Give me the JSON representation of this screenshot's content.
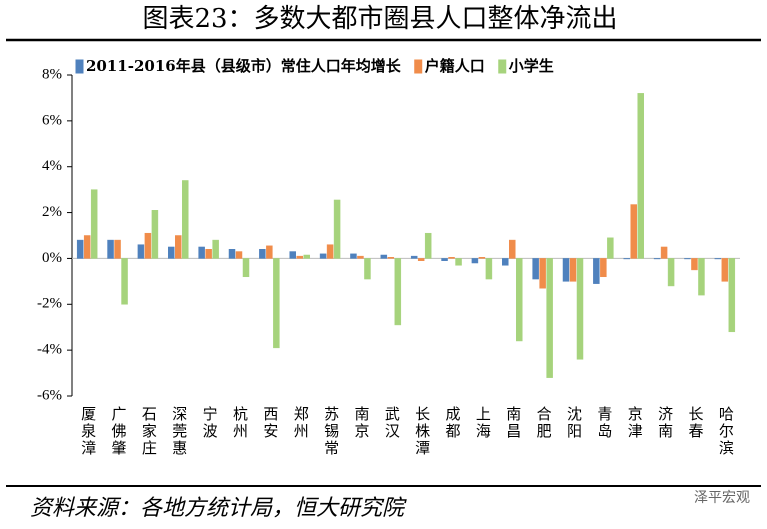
{
  "chart_data": {
    "type": "bar",
    "title": "图表23：多数大都市圈县人口整体净流出",
    "source": "资料来源：各地方统计局，恒大研究院",
    "watermark": "泽平宏观",
    "categories": [
      "厦泉漳",
      "广佛肇",
      "石家庄",
      "深莞惠",
      "宁波",
      "杭州",
      "西安",
      "郑州",
      "苏锡常",
      "南京",
      "武汉",
      "长株潭",
      "成都",
      "上海",
      "南昌",
      "合肥",
      "沈阳",
      "青岛",
      "京津",
      "济南",
      "长春",
      "哈尔滨"
    ],
    "series": [
      {
        "name": "2011-2016年县（县级市）常住人口年均增长",
        "color": "#4f81bd",
        "values": [
          0.8,
          0.8,
          0.6,
          0.5,
          0.5,
          0.4,
          0.4,
          0.3,
          0.2,
          0.2,
          0.15,
          0.1,
          -0.1,
          -0.2,
          -0.3,
          -0.9,
          -1.0,
          -1.1,
          0,
          0,
          0,
          0
        ]
      },
      {
        "name": "户籍人口",
        "color": "#f08c4a",
        "values": [
          1.0,
          0.8,
          1.1,
          1.0,
          0.4,
          0.3,
          0.55,
          0.1,
          0.6,
          0.1,
          0.05,
          -0.1,
          0.05,
          0.05,
          0.8,
          -1.3,
          -1.0,
          -0.8,
          2.35,
          0.5,
          -0.5,
          -1.0
        ]
      },
      {
        "name": "小学生",
        "color": "#a6d37c",
        "values": [
          3.0,
          -2.0,
          2.1,
          3.4,
          0.8,
          -0.8,
          -3.9,
          0.15,
          2.55,
          -0.9,
          -2.9,
          1.1,
          -0.3,
          -0.9,
          -3.6,
          -5.2,
          -4.4,
          0.9,
          7.2,
          -1.2,
          -1.6,
          -3.2
        ]
      }
    ],
    "ylim": [
      -6,
      8
    ],
    "yticks": [
      {
        "value": -6,
        "label": "-6%"
      },
      {
        "value": -4,
        "label": "-4%"
      },
      {
        "value": -2,
        "label": "-2%"
      },
      {
        "value": 0,
        "label": "0%"
      },
      {
        "value": 2,
        "label": "2%"
      },
      {
        "value": 4,
        "label": "4%"
      },
      {
        "value": 6,
        "label": "6%"
      },
      {
        "value": 8,
        "label": "8%"
      }
    ]
  }
}
